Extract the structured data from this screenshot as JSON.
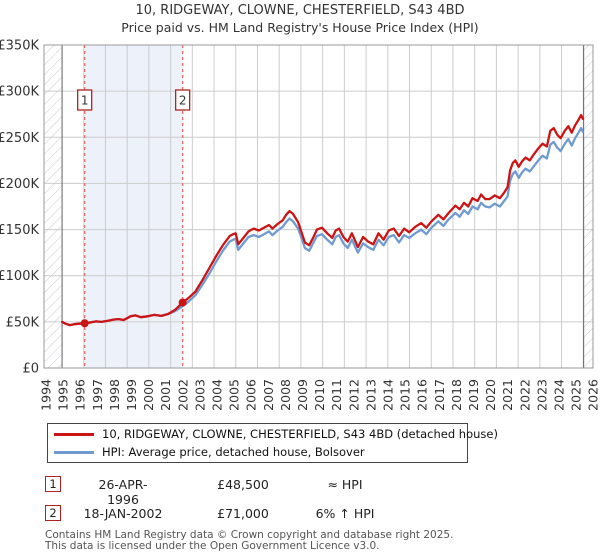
{
  "title": {
    "line1": "10, RIDGEWAY, CLOWNE, CHESTERFIELD, S43 4BD",
    "line2": "Price paid vs. HM Land Registry's House Price Index (HPI)"
  },
  "legend": {
    "items": [
      {
        "label": "10, RIDGEWAY, CLOWNE, CHESTERFIELD, S43 4BD (detached house)",
        "color": "#cc1414"
      },
      {
        "label": "HPI: Average price, detached house, Bolsover",
        "color": "#6f9bd1"
      }
    ]
  },
  "annotations": [
    {
      "num": "1",
      "date": "26-APR-1996",
      "price": "£48,500",
      "vs_hpi": "≈ HPI"
    },
    {
      "num": "2",
      "date": "18-JAN-2002",
      "price": "£71,000",
      "vs_hpi": "6% ↑ HPI"
    }
  ],
  "footer": {
    "line1": "Contains HM Land Registry data © Crown copyright and database right 2025.",
    "line2": "This data is licensed under the Open Government Licence v3.0."
  },
  "colors": {
    "price_line": "#cc1414",
    "hpi_line": "#6f9bd1",
    "marker_dashed": "#e06666",
    "shade": "#edf1fa",
    "grid": "#cccccc",
    "frame": "#999999",
    "hatch": "#c5cad2",
    "data_edge": "#666666",
    "marker_box_border": "#b22222",
    "tick_text": "#333333"
  },
  "chart_data": {
    "type": "line",
    "title": "10, RIDGEWAY, CLOWNE, CHESTERFIELD, S43 4BD — Price paid vs. HPI",
    "x_axis": {
      "ticks": [
        "1994",
        "1995",
        "1996",
        "1997",
        "1998",
        "1999",
        "2000",
        "2001",
        "2002",
        "2003",
        "2004",
        "2005",
        "2006",
        "2007",
        "2008",
        "2009",
        "2010",
        "2011",
        "2012",
        "2013",
        "2014",
        "2015",
        "2016",
        "2017",
        "2018",
        "2019",
        "2020",
        "2021",
        "2022",
        "2023",
        "2024",
        "2025",
        "2026"
      ],
      "range": [
        1994,
        2026.8
      ],
      "grid": true
    },
    "y_axis": {
      "ticks": [
        {
          "label": "£0",
          "value": 0
        },
        {
          "label": "£50K",
          "value": 50000
        },
        {
          "label": "£100K",
          "value": 100000
        },
        {
          "label": "£150K",
          "value": 150000
        },
        {
          "label": "£200K",
          "value": 200000
        },
        {
          "label": "£250K",
          "value": 250000
        },
        {
          "label": "£300K",
          "value": 300000
        },
        {
          "label": "£350K",
          "value": 350000
        }
      ],
      "range": [
        0,
        350000
      ],
      "grid": true
    },
    "markers": [
      {
        "label": "1",
        "year": 1996.32,
        "price": 48500
      },
      {
        "label": "2",
        "year": 2002.05,
        "price": 71000
      }
    ],
    "shaded_region": {
      "from_year": 1996.32,
      "to_year": 2002.05
    },
    "no_data_hatch": {
      "left_until_year": 1995.0,
      "right_from_year": 2025.5
    },
    "series": [
      {
        "name": "HPI: Average price, detached house, Bolsover",
        "color": "#6f9bd1",
        "points": [
          [
            1995.0,
            50000
          ],
          [
            1995.2,
            48000
          ],
          [
            1995.45,
            46500
          ],
          [
            1995.7,
            47500
          ],
          [
            1996.0,
            48000
          ],
          [
            1996.32,
            48500
          ],
          [
            1996.7,
            49500
          ],
          [
            1997.0,
            50500
          ],
          [
            1997.3,
            50000
          ],
          [
            1997.65,
            51000
          ],
          [
            1998.0,
            52500
          ],
          [
            1998.3,
            53000
          ],
          [
            1998.6,
            52000
          ],
          [
            1998.8,
            54000
          ],
          [
            1999.0,
            56000
          ],
          [
            1999.3,
            57000
          ],
          [
            1999.6,
            55000
          ],
          [
            2000.0,
            56000
          ],
          [
            2000.4,
            57500
          ],
          [
            2000.8,
            56500
          ],
          [
            2001.2,
            58500
          ],
          [
            2001.6,
            61500
          ],
          [
            2002.05,
            67000
          ],
          [
            2002.4,
            72000
          ],
          [
            2002.8,
            79000
          ],
          [
            2003.2,
            90000
          ],
          [
            2003.6,
            102000
          ],
          [
            2004.0,
            115000
          ],
          [
            2004.4,
            127000
          ],
          [
            2004.8,
            137000
          ],
          [
            2005.0,
            139000
          ],
          [
            2005.15,
            140000
          ],
          [
            2005.3,
            128000
          ],
          [
            2005.6,
            135000
          ],
          [
            2005.9,
            142000
          ],
          [
            2006.2,
            144000
          ],
          [
            2006.5,
            142000
          ],
          [
            2006.8,
            145000
          ],
          [
            2007.1,
            148000
          ],
          [
            2007.3,
            144000
          ],
          [
            2007.6,
            149000
          ],
          [
            2007.9,
            153000
          ],
          [
            2008.1,
            158000
          ],
          [
            2008.3,
            162000
          ],
          [
            2008.5,
            159000
          ],
          [
            2008.8,
            151000
          ],
          [
            2009.0,
            141000
          ],
          [
            2009.2,
            130000
          ],
          [
            2009.45,
            127000
          ],
          [
            2009.7,
            136000
          ],
          [
            2009.9,
            143000
          ],
          [
            2010.2,
            145000
          ],
          [
            2010.5,
            139000
          ],
          [
            2010.8,
            134000
          ],
          [
            2011.0,
            142000
          ],
          [
            2011.2,
            144000
          ],
          [
            2011.45,
            135000
          ],
          [
            2011.7,
            130000
          ],
          [
            2011.95,
            139000
          ],
          [
            2012.3,
            125000
          ],
          [
            2012.6,
            135000
          ],
          [
            2012.9,
            131000
          ],
          [
            2013.2,
            128000
          ],
          [
            2013.5,
            139000
          ],
          [
            2013.8,
            133000
          ],
          [
            2014.1,
            142000
          ],
          [
            2014.4,
            144000
          ],
          [
            2014.7,
            136000
          ],
          [
            2015.0,
            144000
          ],
          [
            2015.3,
            141000
          ],
          [
            2015.65,
            146000
          ],
          [
            2016.0,
            150000
          ],
          [
            2016.3,
            145000
          ],
          [
            2016.6,
            152000
          ],
          [
            2017.0,
            159000
          ],
          [
            2017.3,
            154000
          ],
          [
            2017.6,
            161000
          ],
          [
            2018.0,
            168000
          ],
          [
            2018.25,
            164000
          ],
          [
            2018.5,
            171000
          ],
          [
            2018.75,
            167000
          ],
          [
            2019.0,
            175000
          ],
          [
            2019.3,
            172000
          ],
          [
            2019.5,
            179000
          ],
          [
            2019.75,
            175000
          ],
          [
            2020.0,
            174000
          ],
          [
            2020.3,
            178000
          ],
          [
            2020.6,
            175000
          ],
          [
            2020.85,
            181000
          ],
          [
            2021.05,
            186000
          ],
          [
            2021.2,
            203000
          ],
          [
            2021.35,
            210000
          ],
          [
            2021.5,
            213000
          ],
          [
            2021.7,
            206000
          ],
          [
            2021.9,
            212000
          ],
          [
            2022.1,
            216000
          ],
          [
            2022.35,
            213000
          ],
          [
            2022.6,
            219000
          ],
          [
            2022.85,
            225000
          ],
          [
            2023.1,
            230000
          ],
          [
            2023.35,
            227000
          ],
          [
            2023.55,
            242000
          ],
          [
            2023.75,
            245000
          ],
          [
            2023.95,
            239000
          ],
          [
            2024.15,
            235000
          ],
          [
            2024.4,
            243000
          ],
          [
            2024.6,
            248000
          ],
          [
            2024.8,
            241000
          ],
          [
            2025.0,
            249000
          ],
          [
            2025.2,
            255000
          ],
          [
            2025.35,
            260000
          ],
          [
            2025.45,
            256000
          ]
        ]
      },
      {
        "name": "10, RIDGEWAY, CLOWNE, CHESTERFIELD, S43 4BD (detached house)",
        "color": "#cc1414",
        "points": [
          [
            1995.0,
            50000
          ],
          [
            1995.2,
            48000
          ],
          [
            1995.45,
            46500
          ],
          [
            1995.7,
            47500
          ],
          [
            1996.0,
            48000
          ],
          [
            1996.32,
            48500
          ],
          [
            1996.7,
            49500
          ],
          [
            1997.0,
            50500
          ],
          [
            1997.3,
            50000
          ],
          [
            1997.65,
            51000
          ],
          [
            1998.0,
            52500
          ],
          [
            1998.3,
            53000
          ],
          [
            1998.6,
            52000
          ],
          [
            1998.8,
            54000
          ],
          [
            1999.0,
            56000
          ],
          [
            1999.3,
            57000
          ],
          [
            1999.6,
            55000
          ],
          [
            2000.0,
            56000
          ],
          [
            2000.4,
            57500
          ],
          [
            2000.8,
            56500
          ],
          [
            2001.2,
            58500
          ],
          [
            2001.6,
            63000
          ],
          [
            2002.05,
            71000
          ],
          [
            2002.4,
            76000
          ],
          [
            2002.8,
            83000
          ],
          [
            2003.2,
            95000
          ],
          [
            2003.6,
            108000
          ],
          [
            2004.0,
            121000
          ],
          [
            2004.4,
            133000
          ],
          [
            2004.8,
            143000
          ],
          [
            2005.0,
            145000
          ],
          [
            2005.15,
            146000
          ],
          [
            2005.3,
            134000
          ],
          [
            2005.6,
            141000
          ],
          [
            2005.9,
            148000
          ],
          [
            2006.2,
            151000
          ],
          [
            2006.5,
            149000
          ],
          [
            2006.8,
            152000
          ],
          [
            2007.1,
            155000
          ],
          [
            2007.3,
            151000
          ],
          [
            2007.6,
            156000
          ],
          [
            2007.9,
            160000
          ],
          [
            2008.1,
            166000
          ],
          [
            2008.3,
            170000
          ],
          [
            2008.5,
            167000
          ],
          [
            2008.8,
            158000
          ],
          [
            2009.0,
            147000
          ],
          [
            2009.2,
            136000
          ],
          [
            2009.45,
            133000
          ],
          [
            2009.7,
            142000
          ],
          [
            2009.9,
            150000
          ],
          [
            2010.2,
            152000
          ],
          [
            2010.5,
            146000
          ],
          [
            2010.8,
            141000
          ],
          [
            2011.0,
            149000
          ],
          [
            2011.2,
            151000
          ],
          [
            2011.45,
            142000
          ],
          [
            2011.7,
            137000
          ],
          [
            2011.95,
            146000
          ],
          [
            2012.3,
            131000
          ],
          [
            2012.6,
            142000
          ],
          [
            2012.9,
            137000
          ],
          [
            2013.2,
            134000
          ],
          [
            2013.5,
            146000
          ],
          [
            2013.8,
            139000
          ],
          [
            2014.1,
            149000
          ],
          [
            2014.4,
            151000
          ],
          [
            2014.7,
            143000
          ],
          [
            2015.0,
            151000
          ],
          [
            2015.3,
            147000
          ],
          [
            2015.65,
            153000
          ],
          [
            2016.0,
            157000
          ],
          [
            2016.3,
            152000
          ],
          [
            2016.6,
            159000
          ],
          [
            2017.0,
            166000
          ],
          [
            2017.3,
            161000
          ],
          [
            2017.6,
            168000
          ],
          [
            2018.0,
            176000
          ],
          [
            2018.25,
            172000
          ],
          [
            2018.5,
            179000
          ],
          [
            2018.75,
            175000
          ],
          [
            2019.0,
            184000
          ],
          [
            2019.3,
            181000
          ],
          [
            2019.5,
            188000
          ],
          [
            2019.75,
            183000
          ],
          [
            2020.0,
            183000
          ],
          [
            2020.3,
            187000
          ],
          [
            2020.6,
            184000
          ],
          [
            2020.85,
            190000
          ],
          [
            2021.05,
            196000
          ],
          [
            2021.2,
            214000
          ],
          [
            2021.35,
            222000
          ],
          [
            2021.5,
            225000
          ],
          [
            2021.7,
            218000
          ],
          [
            2021.9,
            224000
          ],
          [
            2022.1,
            228000
          ],
          [
            2022.35,
            225000
          ],
          [
            2022.6,
            232000
          ],
          [
            2022.85,
            238000
          ],
          [
            2023.1,
            243000
          ],
          [
            2023.35,
            240000
          ],
          [
            2023.55,
            257000
          ],
          [
            2023.75,
            260000
          ],
          [
            2023.95,
            253000
          ],
          [
            2024.15,
            249000
          ],
          [
            2024.4,
            257000
          ],
          [
            2024.6,
            262000
          ],
          [
            2024.8,
            255000
          ],
          [
            2025.0,
            263000
          ],
          [
            2025.2,
            269000
          ],
          [
            2025.35,
            274000
          ],
          [
            2025.45,
            270000
          ]
        ]
      }
    ],
    "legend_position": "bottom"
  }
}
